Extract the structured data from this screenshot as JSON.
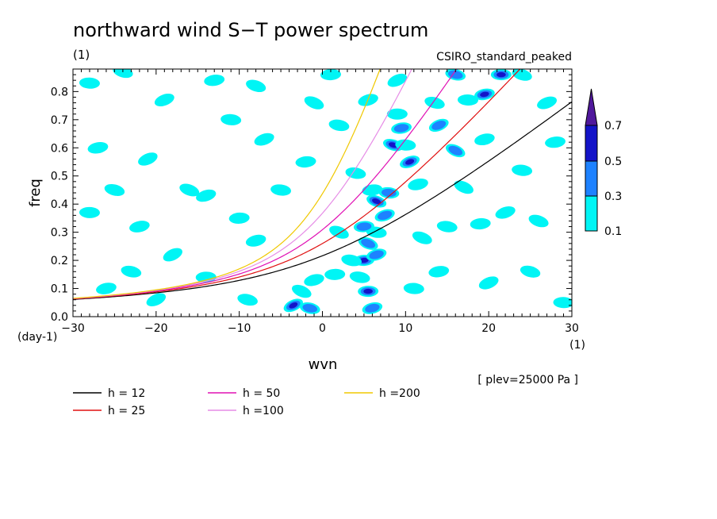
{
  "chart_data": {
    "type": "heatmap",
    "title": "northward wind S−T power spectrum",
    "subtitle": "(1)",
    "model": "CSIRO_standard_peaked",
    "xlabel": "wvn",
    "ylabel": "freq",
    "x_unit": "(1)",
    "y_unit": "(day-1)",
    "level_note": "[ plev=25000 Pa ]",
    "xlim": [
      -30,
      30
    ],
    "ylim": [
      0.0,
      0.88
    ],
    "x_ticks": [
      "-30",
      "-20",
      "-10",
      "0",
      "10",
      "20",
      "30"
    ],
    "y_ticks": [
      "0.0",
      "0.1",
      "0.2",
      "0.3",
      "0.4",
      "0.5",
      "0.6",
      "0.7",
      "0.8"
    ],
    "colorbar": {
      "levels": [
        "0.1",
        "0.3",
        "0.5",
        "0.7"
      ],
      "colors": [
        "#00f5f5",
        "#1e82ff",
        "#1414c8",
        "#50189c"
      ]
    },
    "dispersion_curves": [
      {
        "name": "h = 12",
        "h": 12,
        "color": "#000000"
      },
      {
        "name": "h = 25",
        "h": 25,
        "color": "#e01010"
      },
      {
        "name": "h = 50",
        "h": 50,
        "color": "#e010b4"
      },
      {
        "name": "h =100",
        "h": 100,
        "color": "#e68ce6"
      },
      {
        "name": "h =200",
        "h": 200,
        "color": "#f0c800"
      }
    ],
    "blobs": [
      {
        "x": -3.5,
        "y": 0.04,
        "level": 3
      },
      {
        "x": -1.5,
        "y": 0.03,
        "level": 2
      },
      {
        "x": 5.5,
        "y": 0.09,
        "level": 3
      },
      {
        "x": 6.0,
        "y": 0.03,
        "level": 2
      },
      {
        "x": -2.5,
        "y": 0.09,
        "level": 1
      },
      {
        "x": 4.5,
        "y": 0.14,
        "level": 1
      },
      {
        "x": 5.0,
        "y": 0.2,
        "level": 3
      },
      {
        "x": 6.5,
        "y": 0.22,
        "level": 2
      },
      {
        "x": 5.5,
        "y": 0.26,
        "level": 2
      },
      {
        "x": 6.5,
        "y": 0.3,
        "level": 1
      },
      {
        "x": 5.0,
        "y": 0.32,
        "level": 2
      },
      {
        "x": 7.5,
        "y": 0.36,
        "level": 2
      },
      {
        "x": 6.5,
        "y": 0.41,
        "level": 3
      },
      {
        "x": 8.0,
        "y": 0.44,
        "level": 2
      },
      {
        "x": 6.0,
        "y": 0.45,
        "level": 1
      },
      {
        "x": 10.5,
        "y": 0.55,
        "level": 3
      },
      {
        "x": 8.5,
        "y": 0.61,
        "level": 3
      },
      {
        "x": 10.0,
        "y": 0.61,
        "level": 1
      },
      {
        "x": 9.5,
        "y": 0.67,
        "level": 2
      },
      {
        "x": 14.0,
        "y": 0.68,
        "level": 2
      },
      {
        "x": 13.5,
        "y": 0.76,
        "level": 1
      },
      {
        "x": 17.5,
        "y": 0.77,
        "level": 1
      },
      {
        "x": 19.5,
        "y": 0.79,
        "level": 3
      },
      {
        "x": 9.0,
        "y": 0.84,
        "level": 1
      },
      {
        "x": 16.0,
        "y": 0.86,
        "level": 2
      },
      {
        "x": 21.5,
        "y": 0.86,
        "level": 3
      },
      {
        "x": 19.5,
        "y": 0.63,
        "level": 1
      },
      {
        "x": 16.0,
        "y": 0.59,
        "level": 2
      },
      {
        "x": 3.5,
        "y": 0.2,
        "level": 1
      },
      {
        "x": 1.5,
        "y": 0.15,
        "level": 1
      },
      {
        "x": -1.0,
        "y": 0.13,
        "level": 1
      },
      {
        "x": 2.0,
        "y": 0.3,
        "level": 1
      },
      {
        "x": 4.0,
        "y": 0.51,
        "level": 1
      },
      {
        "x": -10.0,
        "y": 0.35,
        "level": 1
      },
      {
        "x": -14.0,
        "y": 0.43,
        "level": 1
      },
      {
        "x": -16.0,
        "y": 0.45,
        "level": 1
      },
      {
        "x": -5.0,
        "y": 0.45,
        "level": 1
      },
      {
        "x": -2.0,
        "y": 0.55,
        "level": 1
      },
      {
        "x": -7.0,
        "y": 0.63,
        "level": 1
      },
      {
        "x": -8.0,
        "y": 0.82,
        "level": 1
      },
      {
        "x": -11.0,
        "y": 0.7,
        "level": 1
      },
      {
        "x": -13.0,
        "y": 0.84,
        "level": 1
      },
      {
        "x": -19.0,
        "y": 0.77,
        "level": 1
      },
      {
        "x": -24.0,
        "y": 0.87,
        "level": 1
      },
      {
        "x": -28.0,
        "y": 0.83,
        "level": 1
      },
      {
        "x": -27.0,
        "y": 0.6,
        "level": 1
      },
      {
        "x": -21.0,
        "y": 0.56,
        "level": 1
      },
      {
        "x": -25.0,
        "y": 0.45,
        "level": 1
      },
      {
        "x": -28.0,
        "y": 0.37,
        "level": 1
      },
      {
        "x": -22.0,
        "y": 0.32,
        "level": 1
      },
      {
        "x": -18.0,
        "y": 0.22,
        "level": 1
      },
      {
        "x": -23.0,
        "y": 0.16,
        "level": 1
      },
      {
        "x": -14.0,
        "y": 0.14,
        "level": 1
      },
      {
        "x": -8.0,
        "y": 0.27,
        "level": 1
      },
      {
        "x": -1.0,
        "y": 0.76,
        "level": 1
      },
      {
        "x": 2.0,
        "y": 0.68,
        "level": 1
      },
      {
        "x": 1.0,
        "y": 0.86,
        "level": 1
      },
      {
        "x": 5.5,
        "y": 0.77,
        "level": 1
      },
      {
        "x": 12.0,
        "y": 0.28,
        "level": 1
      },
      {
        "x": 15.0,
        "y": 0.32,
        "level": 1
      },
      {
        "x": 19.0,
        "y": 0.33,
        "level": 1
      },
      {
        "x": 22.0,
        "y": 0.37,
        "level": 1
      },
      {
        "x": 26.0,
        "y": 0.34,
        "level": 1
      },
      {
        "x": 24.0,
        "y": 0.52,
        "level": 1
      },
      {
        "x": 28.0,
        "y": 0.62,
        "level": 1
      },
      {
        "x": 27.0,
        "y": 0.76,
        "level": 1
      },
      {
        "x": 24.0,
        "y": 0.86,
        "level": 1
      },
      {
        "x": 11.0,
        "y": 0.1,
        "level": 1
      },
      {
        "x": 14.0,
        "y": 0.16,
        "level": 1
      },
      {
        "x": 20.0,
        "y": 0.12,
        "level": 1
      },
      {
        "x": 25.0,
        "y": 0.16,
        "level": 1
      },
      {
        "x": 29.0,
        "y": 0.05,
        "level": 1
      },
      {
        "x": -26.0,
        "y": 0.1,
        "level": 1
      },
      {
        "x": -20.0,
        "y": 0.06,
        "level": 1
      },
      {
        "x": -9.0,
        "y": 0.06,
        "level": 1
      },
      {
        "x": 9.0,
        "y": 0.72,
        "level": 1
      },
      {
        "x": 11.5,
        "y": 0.47,
        "level": 1
      },
      {
        "x": 17.0,
        "y": 0.46,
        "level": 1
      }
    ]
  }
}
